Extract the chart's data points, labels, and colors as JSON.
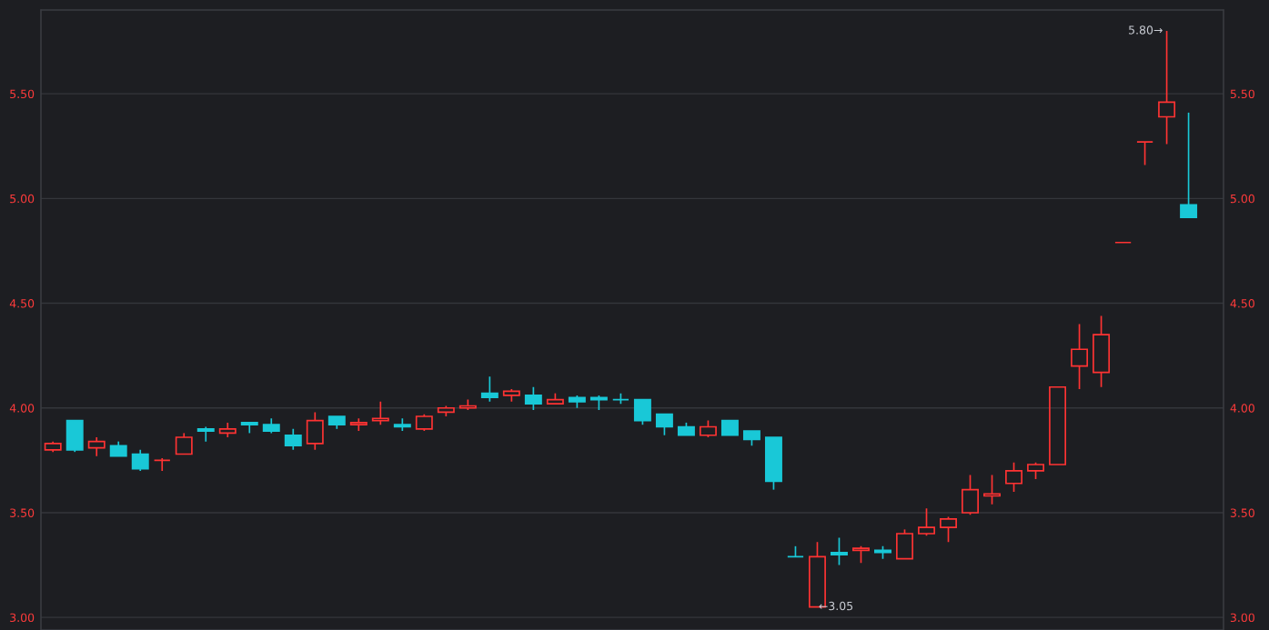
{
  "chart_data": {
    "type": "candlestick",
    "categories": [
      null,
      null,
      null,
      null,
      null,
      null,
      null,
      null,
      null,
      null,
      null,
      null,
      null,
      null,
      null,
      null,
      null,
      null,
      null,
      null,
      null,
      null,
      null,
      null,
      null,
      null,
      null,
      null,
      null,
      null,
      null,
      null,
      null,
      null,
      null,
      null,
      null,
      null,
      null,
      null,
      null,
      null,
      null,
      null,
      null,
      null,
      null,
      null,
      null,
      null,
      null,
      null,
      null
    ],
    "ohlc": [
      [
        3.8,
        3.84,
        3.79,
        3.83
      ],
      [
        3.94,
        3.94,
        3.79,
        3.8
      ],
      [
        3.81,
        3.86,
        3.77,
        3.84
      ],
      [
        3.82,
        3.84,
        3.77,
        3.77
      ],
      [
        3.78,
        3.8,
        3.7,
        3.71
      ],
      [
        3.75,
        3.76,
        3.7,
        3.75
      ],
      [
        3.78,
        3.88,
        3.78,
        3.86
      ],
      [
        3.9,
        3.91,
        3.84,
        3.89
      ],
      [
        3.88,
        3.93,
        3.86,
        3.9
      ],
      [
        3.93,
        3.93,
        3.88,
        3.92
      ],
      [
        3.92,
        3.95,
        3.88,
        3.89
      ],
      [
        3.87,
        3.9,
        3.8,
        3.82
      ],
      [
        3.83,
        3.98,
        3.8,
        3.94
      ],
      [
        3.96,
        3.96,
        3.9,
        3.92
      ],
      [
        3.92,
        3.95,
        3.89,
        3.93
      ],
      [
        3.94,
        4.03,
        3.92,
        3.95
      ],
      [
        3.92,
        3.95,
        3.89,
        3.91
      ],
      [
        3.9,
        3.97,
        3.89,
        3.96
      ],
      [
        3.98,
        4.01,
        3.96,
        4.0
      ],
      [
        4.0,
        4.04,
        3.99,
        4.01
      ],
      [
        4.07,
        4.15,
        4.03,
        4.05
      ],
      [
        4.06,
        4.09,
        4.03,
        4.08
      ],
      [
        4.06,
        4.1,
        3.99,
        4.02
      ],
      [
        4.02,
        4.07,
        4.02,
        4.04
      ],
      [
        4.05,
        4.06,
        4.0,
        4.03
      ],
      [
        4.05,
        4.06,
        3.99,
        4.04
      ],
      [
        4.04,
        4.07,
        4.02,
        4.04
      ],
      [
        4.04,
        4.04,
        3.92,
        3.94
      ],
      [
        3.97,
        3.97,
        3.87,
        3.91
      ],
      [
        3.91,
        3.93,
        3.87,
        3.87
      ],
      [
        3.87,
        3.94,
        3.86,
        3.91
      ],
      [
        3.94,
        3.94,
        3.87,
        3.87
      ],
      [
        3.89,
        3.89,
        3.82,
        3.85
      ],
      [
        3.86,
        3.86,
        3.61,
        3.65
      ],
      [
        3.29,
        3.34,
        3.29,
        3.29
      ],
      [
        3.05,
        3.36,
        3.05,
        3.29
      ],
      [
        3.31,
        3.38,
        3.25,
        3.3
      ],
      [
        3.32,
        3.34,
        3.26,
        3.33
      ],
      [
        3.32,
        3.34,
        3.28,
        3.31
      ],
      [
        3.28,
        3.42,
        3.28,
        3.4
      ],
      [
        3.4,
        3.52,
        3.39,
        3.43
      ],
      [
        3.43,
        3.48,
        3.36,
        3.47
      ],
      [
        3.5,
        3.68,
        3.49,
        3.61
      ],
      [
        3.58,
        3.68,
        3.54,
        3.59
      ],
      [
        3.64,
        3.74,
        3.6,
        3.7
      ],
      [
        3.7,
        3.74,
        3.66,
        3.73
      ],
      [
        3.73,
        4.1,
        3.73,
        4.1
      ],
      [
        4.2,
        4.4,
        4.09,
        4.28
      ],
      [
        4.17,
        4.44,
        4.1,
        4.35
      ],
      [
        4.79,
        4.79,
        4.79,
        4.79
      ],
      [
        5.27,
        5.27,
        5.16,
        5.27
      ],
      [
        5.39,
        5.8,
        5.26,
        5.46
      ],
      [
        4.97,
        5.41,
        4.91,
        4.91
      ]
    ],
    "colors": [
      "#ff3333",
      "#19c8d7",
      "#ff3333",
      "#19c8d7",
      "#19c8d7",
      "#ff3333",
      "#ff3333",
      "#19c8d7",
      "#ff3333",
      "#19c8d7",
      "#19c8d7",
      "#19c8d7",
      "#ff3333",
      "#19c8d7",
      "#ff3333",
      "#ff3333",
      "#19c8d7",
      "#ff3333",
      "#ff3333",
      "#ff3333",
      "#19c8d7",
      "#ff3333",
      "#19c8d7",
      "#ff3333",
      "#19c8d7",
      "#19c8d7",
      "#19c8d7",
      "#19c8d7",
      "#19c8d7",
      "#19c8d7",
      "#ff3333",
      "#19c8d7",
      "#19c8d7",
      "#19c8d7",
      "#19c8d7",
      "#ff3333",
      "#19c8d7",
      "#ff3333",
      "#19c8d7",
      "#ff3333",
      "#ff3333",
      "#ff3333",
      "#ff3333",
      "#ff3333",
      "#ff3333",
      "#ff3333",
      "#ff3333",
      "#ff3333",
      "#ff3333",
      "#ff3333",
      "#ff3333",
      "#ff3333",
      "#19c8d7"
    ],
    "ylim": [
      2.94,
      5.9
    ],
    "yticks": [
      {
        "value": 3.0,
        "label": "3.00"
      },
      {
        "value": 3.5,
        "label": "3.50"
      },
      {
        "value": 4.0,
        "label": "4.00"
      },
      {
        "value": 4.5,
        "label": "4.50"
      },
      {
        "value": 5.0,
        "label": "5.00"
      },
      {
        "value": 5.5,
        "label": "5.50"
      }
    ],
    "y2lim": [
      2.94,
      5.9
    ],
    "y2ticks": [
      {
        "value": 3.0,
        "label": "3.00"
      },
      {
        "value": 3.5,
        "label": "3.50"
      },
      {
        "value": 4.0,
        "label": "4.00"
      },
      {
        "value": 4.5,
        "label": "4.50"
      },
      {
        "value": 5.0,
        "label": "5.00"
      },
      {
        "value": 5.5,
        "label": "5.50"
      }
    ],
    "grid": "y",
    "tick_labels": "y",
    "annotations": [
      "5.80→",
      "←3.05"
    ]
  }
}
